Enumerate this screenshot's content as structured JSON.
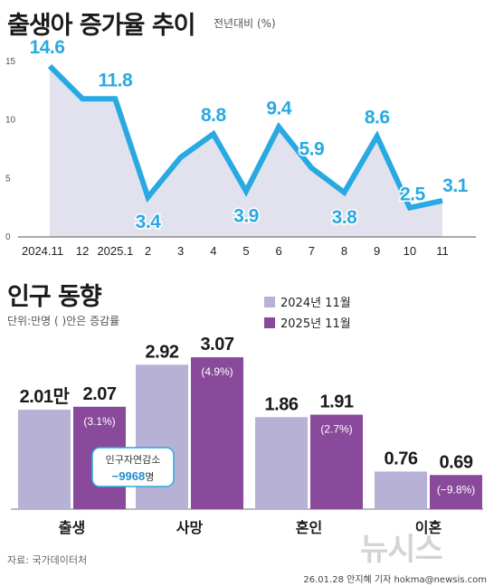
{
  "chart_top": {
    "title": "출생아 증가율 추이",
    "subtitle": "전년대비 (%)",
    "chart_data": {
      "type": "area",
      "categories": [
        "2024.11",
        "12",
        "2025.1",
        "2",
        "3",
        "4",
        "5",
        "6",
        "7",
        "8",
        "9",
        "10",
        "11"
      ],
      "values": [
        14.6,
        11.8,
        11.8,
        3.4,
        6.8,
        8.8,
        3.9,
        9.4,
        5.9,
        3.8,
        8.6,
        2.5,
        3.1
      ],
      "data_labels": [
        "14.6",
        "",
        "11.8",
        "3.4",
        "",
        "8.8",
        "3.9",
        "9.4",
        "5.9",
        "3.8",
        "8.6",
        "2.5",
        "3.1"
      ],
      "yticks": [
        "0",
        "5",
        "10",
        "15"
      ],
      "ylim": [
        0,
        17
      ],
      "line_color": "#29a9e1",
      "fill_color": "#e2e2ef"
    }
  },
  "chart_bottom": {
    "title": "인구 동향",
    "unit": "단위:만명 ( )안은  증감률",
    "legend": [
      {
        "label": "2024년 11월",
        "color": "#b7b1d6"
      },
      {
        "label": "2025년 11월",
        "color": "#8a4a9c"
      }
    ],
    "chart_data": {
      "type": "bar",
      "categories": [
        "출생",
        "사망",
        "혼인",
        "이혼"
      ],
      "series": [
        {
          "name": "2024년 11월",
          "values": [
            2.01,
            2.92,
            1.86,
            0.76
          ],
          "labels": [
            "2.01만",
            "2.92",
            "1.86",
            "0.76"
          ]
        },
        {
          "name": "2025년 11월",
          "values": [
            2.07,
            3.07,
            1.91,
            0.69
          ],
          "labels": [
            "2.07",
            "3.07",
            "1.91",
            "0.69"
          ],
          "changes": [
            "(3.1%)",
            "(4.9%)",
            "(2.7%)",
            "(−9.8%)"
          ]
        }
      ]
    },
    "callout": {
      "title": "인구자연감소",
      "value": "−9968",
      "suffix": "명"
    }
  },
  "footer": {
    "source": "자료: 국가데이터처",
    "credit": "26.01.28 안지혜 기자  hokma@newsis.com",
    "watermark": "뉴시스"
  }
}
